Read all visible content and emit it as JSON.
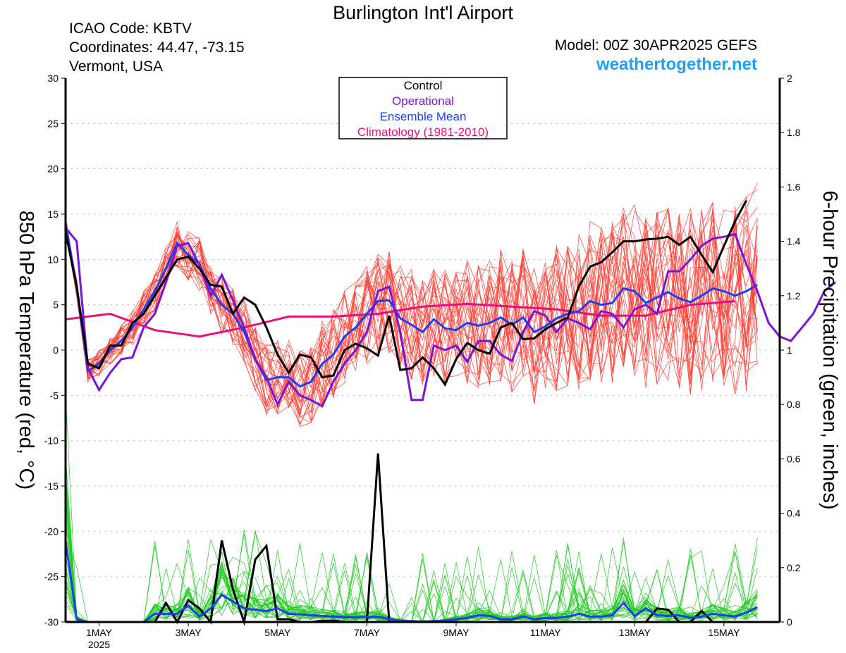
{
  "header": {
    "title": "Burlington Int'l Airport",
    "icao": "ICAO Code: KBTV",
    "coords": "Coordinates: 44.47, -73.15",
    "region": "Vermont, USA",
    "model": "Model: 00Z 30APR2025 GEFS",
    "site": "weathertogether.net"
  },
  "colors": {
    "members": "#ff3b30",
    "precip_members": "#22cc22",
    "control": "#000000",
    "operational": "#7a14d6",
    "ensemble_mean": "#1f3df0",
    "climatology": "#e6107d",
    "site": "#1da1f2"
  },
  "chart_data": {
    "type": "line",
    "title": "Burlington Int'l Airport",
    "x_unit": "days since 30 Apr 2025 00Z",
    "xlim": [
      0,
      16
    ],
    "xticks": [
      {
        "x": 0.75,
        "label": "1MAY",
        "sublabel": "2025"
      },
      {
        "x": 2.75,
        "label": "3MAY"
      },
      {
        "x": 4.75,
        "label": "5MAY"
      },
      {
        "x": 6.75,
        "label": "7MAY"
      },
      {
        "x": 8.75,
        "label": "9MAY"
      },
      {
        "x": 10.75,
        "label": "11MAY"
      },
      {
        "x": 12.75,
        "label": "13MAY"
      },
      {
        "x": 14.75,
        "label": "15MAY"
      }
    ],
    "y_left": {
      "label": "850 hPa Temperature (red, °C)",
      "range": [
        -30,
        30
      ],
      "ticks": [
        "30",
        "25",
        "20",
        "15",
        "10",
        "5",
        "0",
        "-5",
        "-10",
        "-15",
        "-20",
        "-25",
        "-30"
      ]
    },
    "y_right": {
      "label": "6-hour Precipitation (green, inches)",
      "range": [
        0,
        2
      ],
      "ticks": [
        "2",
        "1.8",
        "1.6",
        "1.4",
        "1.2",
        "1",
        "0.8",
        "0.6",
        "0.4",
        "0.2",
        "0"
      ]
    },
    "grid": true,
    "legend": {
      "position": "top-center",
      "entries": [
        {
          "label": "Control",
          "color": "#000000"
        },
        {
          "label": "Operational",
          "color": "#7a14d6"
        },
        {
          "label": "Ensemble Mean",
          "color": "#1f3df0"
        },
        {
          "label": "Climatology (1981-2010)",
          "color": "#e6107d"
        }
      ]
    },
    "temp_series": {
      "control": {
        "x_step": 0.25,
        "values": [
          13,
          7,
          -1.5,
          -2,
          0.5,
          0.5,
          3,
          4,
          6,
          8,
          10,
          10.3,
          9,
          7.2,
          7,
          4,
          5.8,
          5,
          2.5,
          -0.5,
          -2.5,
          -0.5,
          -0.8,
          -3,
          -2.8,
          0,
          0.7,
          0.2,
          -0.6,
          3.8,
          -2.2,
          -2,
          -0.8,
          -2,
          -3.8,
          -1,
          0.8,
          0,
          -0.4,
          2.5,
          3,
          1.2,
          1.3,
          2.3,
          3,
          3.6,
          7,
          9.2,
          9.7,
          10.8,
          12,
          12,
          12.2,
          12.3,
          12.5,
          11.6,
          12.5,
          10.5,
          8.6,
          11.5,
          14.2,
          16.5
        ]
      },
      "operational": {
        "x_step": 0.25,
        "values": [
          13.5,
          12,
          -2,
          -4.4,
          -2.5,
          -1,
          -0.8,
          2.5,
          4,
          7.5,
          11.5,
          11.8,
          9.4,
          6,
          8.3,
          5.5,
          2.5,
          -1,
          -3,
          -6,
          -3.5,
          -5,
          -5.5,
          -6.2,
          -3.5,
          -1.5,
          0,
          2,
          6.5,
          7,
          2,
          -5.5,
          -5.5,
          0.5,
          0,
          0.5,
          -1.3,
          1,
          1,
          -0.5,
          -1.2,
          2,
          4.3,
          3.8,
          2,
          3.5,
          3,
          2.3,
          4.3,
          4,
          2.5,
          4.5,
          5,
          4,
          8.7,
          8.7,
          10,
          11.5,
          12.3,
          12.5,
          12.8,
          9.5,
          6.5,
          3,
          1.5,
          1,
          2.5,
          4,
          6.5,
          7.5
        ]
      },
      "ensemble_mean": {
        "x_step": 0.25,
        "values": [
          14,
          7,
          -2.3,
          -1.5,
          0,
          1,
          2.5,
          4.5,
          6.5,
          9,
          11.8,
          10.5,
          9.5,
          6.8,
          5,
          4,
          2,
          -1,
          -3.3,
          -3,
          -3,
          -4,
          -3.5,
          -1.5,
          -0.5,
          1.5,
          2.5,
          4,
          5.4,
          5.5,
          3.5,
          2.8,
          2,
          3.4,
          2.4,
          2.2,
          3,
          2.7,
          3,
          3.6,
          2.8,
          3.6,
          2,
          2.6,
          3.5,
          4,
          4.3,
          5.4,
          5,
          5.2,
          6.8,
          6.5,
          5.2,
          5.8,
          6.4,
          5.7,
          5.3,
          6,
          6.8,
          6.5,
          6,
          6.5,
          7.2
        ]
      },
      "climatology": {
        "x_step": 1,
        "values": [
          3.4,
          4,
          2.2,
          1.5,
          2.5,
          3.7,
          3.7,
          4,
          4.8,
          5.1,
          4.8,
          4.5,
          3.8,
          3.8,
          5.0,
          5.4
        ]
      }
    },
    "precip_series": {
      "control": {
        "x_step": 0.25,
        "values": [
          0.001,
          0,
          0,
          0,
          0,
          0,
          0,
          0,
          0,
          0.07,
          0,
          0.08,
          0.05,
          0,
          0.3,
          0.12,
          0,
          0.23,
          0.28,
          0.01,
          0.01,
          0,
          0,
          0.005,
          0.005,
          0,
          0,
          0,
          0.62,
          0,
          0,
          0,
          0,
          0,
          0,
          0,
          0,
          0,
          0,
          0,
          0,
          0,
          0,
          0,
          0,
          0,
          0,
          0,
          0,
          0,
          0,
          0,
          0,
          0.05,
          0.045,
          0,
          0,
          0.04,
          0,
          0,
          0,
          0
        ]
      },
      "ensemble_mean": {
        "x_step": 0.25,
        "values": [
          0.3,
          0.01,
          0,
          0,
          0,
          0,
          0,
          0,
          0.03,
          0.03,
          0.03,
          0.06,
          0.02,
          0.05,
          0.1,
          0.075,
          0.05,
          0.045,
          0.04,
          0.05,
          0.03,
          0.028,
          0.025,
          0.022,
          0.02,
          0.018,
          0.018,
          0.018,
          0.02,
          0.01,
          0.005,
          0.003,
          0.002,
          0.003,
          0.005,
          0.01,
          0.015,
          0.025,
          0.022,
          0.01,
          0.01,
          0.02,
          0.01,
          0.015,
          0.015,
          0.02,
          0.03,
          0.02,
          0.02,
          0.025,
          0.07,
          0.022,
          0.05,
          0.025,
          0.022,
          0.025,
          0.015,
          0.02,
          0.03,
          0.025,
          0.02,
          0.035,
          0.055
        ]
      }
    },
    "members": {
      "count": 30,
      "kind": "random-perturbation-of-mean"
    }
  }
}
